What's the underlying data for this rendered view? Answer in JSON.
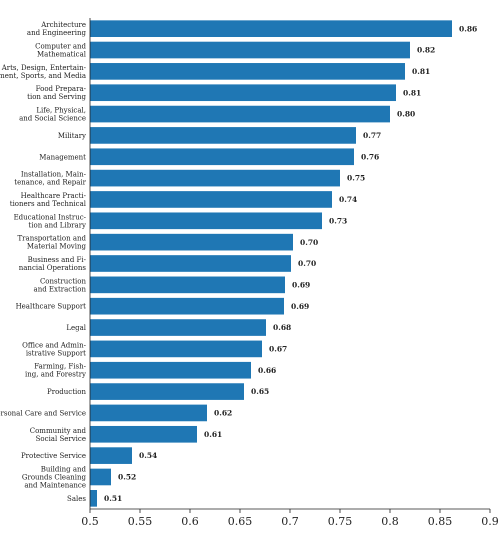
{
  "chart_data": {
    "type": "bar",
    "orientation": "horizontal",
    "title": "",
    "xlabel": "",
    "ylabel": "",
    "xlim": [
      0.5,
      0.9
    ],
    "xticks": [
      "0.5",
      "0.55",
      "0.6",
      "0.65",
      "0.7",
      "0.75",
      "0.8",
      "0.85",
      "0.9"
    ],
    "grid": false,
    "bar_color": "#1f77b4",
    "categories": [
      [
        "Architecture",
        "and Engineering"
      ],
      [
        "Computer and",
        "Mathematical"
      ],
      [
        "Arts, Design, Entertain-",
        "ment, Sports, and Media"
      ],
      [
        "Food Prepara-",
        "tion and Serving"
      ],
      [
        "Life, Physical,",
        "and Social Science"
      ],
      [
        "Military"
      ],
      [
        "Management"
      ],
      [
        "Installation, Main-",
        "tenance, and Repair"
      ],
      [
        "Healthcare Practi-",
        "tioners and Technical"
      ],
      [
        "Educational Instruc-",
        "tion and Library"
      ],
      [
        "Transportation and",
        "Material Moving"
      ],
      [
        "Business and Fi-",
        "nancial Operations"
      ],
      [
        "Construction",
        "and Extraction"
      ],
      [
        "Healthcare Support"
      ],
      [
        "Legal"
      ],
      [
        "Office and Admin-",
        "istrative Support"
      ],
      [
        "Farming, Fish-",
        "ing, and Forestry"
      ],
      [
        "Production"
      ],
      [
        "Personal Care and Service"
      ],
      [
        "Community and",
        "Social Service"
      ],
      [
        "Protective Service"
      ],
      [
        "Building and",
        "Grounds Cleaning",
        "and Maintenance"
      ],
      [
        "Sales"
      ]
    ],
    "values": [
      0.862,
      0.82,
      0.815,
      0.806,
      0.8,
      0.766,
      0.764,
      0.75,
      0.742,
      0.732,
      0.703,
      0.701,
      0.695,
      0.694,
      0.676,
      0.672,
      0.661,
      0.654,
      0.617,
      0.607,
      0.542,
      0.521,
      0.507
    ],
    "value_labels": [
      "0.86",
      "0.82",
      "0.81",
      "0.81",
      "0.80",
      "0.77",
      "0.76",
      "0.75",
      "0.74",
      "0.73",
      "0.70",
      "0.70",
      "0.69",
      "0.69",
      "0.68",
      "0.67",
      "0.66",
      "0.65",
      "0.62",
      "0.61",
      "0.54",
      "0.52",
      "0.51"
    ]
  }
}
